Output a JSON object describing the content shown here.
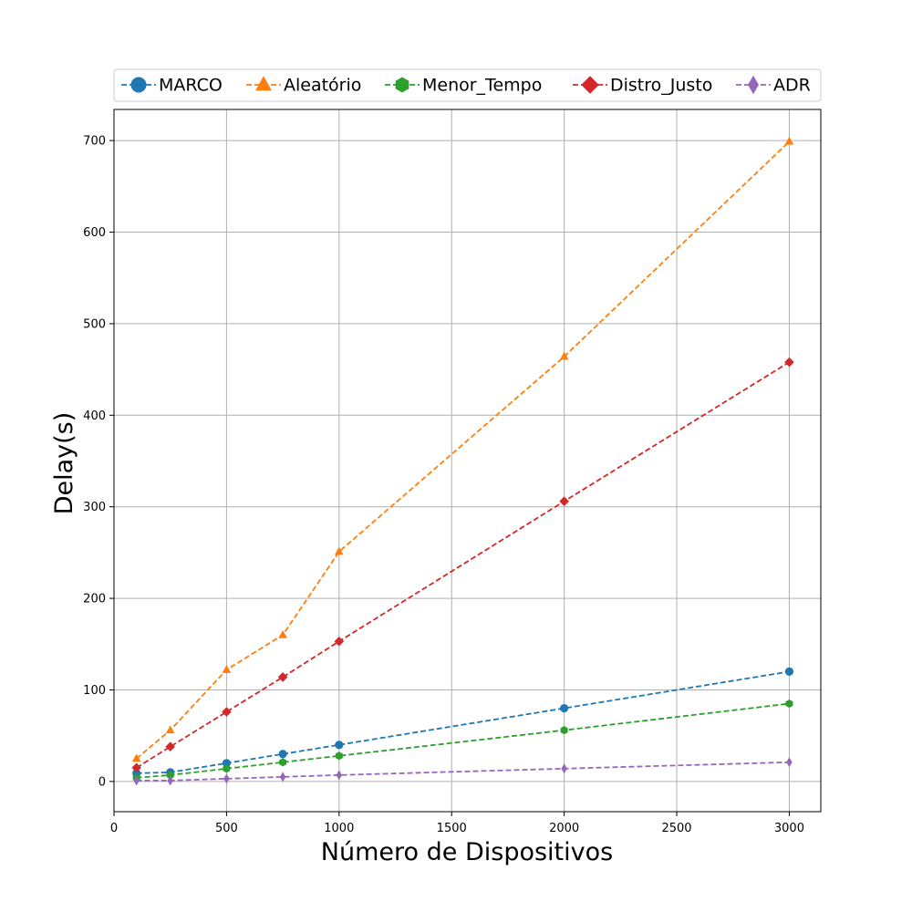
{
  "chart_data": {
    "type": "line",
    "title": "",
    "xlabel": "Número de Dispositivos",
    "ylabel": "Delay(s)",
    "xlim": [
      0,
      3140
    ],
    "ylim": [
      -33,
      734
    ],
    "xticks": [
      0,
      500,
      1000,
      1500,
      2000,
      2500,
      3000
    ],
    "yticks": [
      0,
      100,
      200,
      300,
      400,
      500,
      600,
      700
    ],
    "grid": true,
    "legend_position": "top",
    "x": [
      100,
      250,
      500,
      750,
      1000,
      2000,
      3000
    ],
    "series": [
      {
        "name": "MARCO",
        "color": "#1f77b4",
        "marker": "circle",
        "values": [
          9,
          10,
          20,
          30,
          40,
          80,
          120
        ]
      },
      {
        "name": "Aleatório",
        "color": "#ff7f0e",
        "marker": "triangle",
        "values": [
          25,
          56,
          122,
          160,
          251,
          464,
          699
        ]
      },
      {
        "name": "Menor_Tempo",
        "color": "#2ca02c",
        "marker": "hexagon",
        "values": [
          4,
          7,
          14,
          21,
          28,
          56,
          85
        ]
      },
      {
        "name": "Distro_Justo",
        "color": "#d62728",
        "marker": "diamond",
        "values": [
          15,
          38,
          76,
          114,
          153,
          306,
          458
        ]
      },
      {
        "name": "ADR",
        "color": "#9467bd",
        "marker": "thin-diamond",
        "values": [
          1,
          1,
          3,
          5,
          7,
          14,
          21
        ]
      }
    ]
  }
}
